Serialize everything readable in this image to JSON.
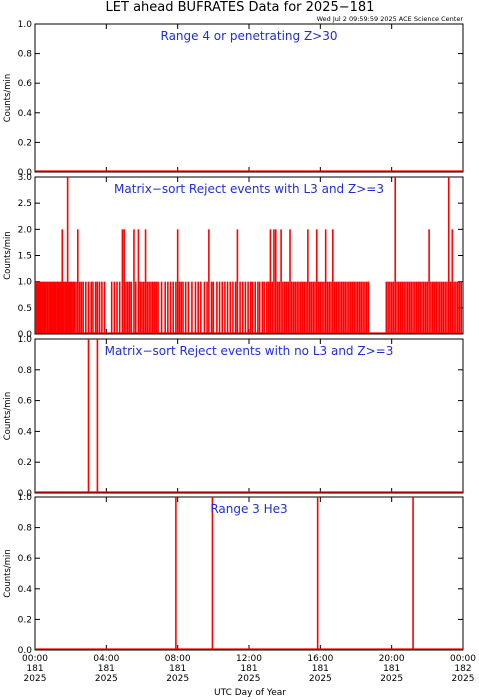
{
  "header": {
    "title": "LET ahead BUFRATES Data for 2025−181",
    "timestamp": "Wed Jul  2 09:59:59 2025 ACE Science Center"
  },
  "colors": {
    "data": "#ff0000",
    "label": "#1f2fd6",
    "axis": "#000000"
  },
  "chart_data": [
    {
      "type": "line",
      "title": "Range 4 or  penetrating Z>30",
      "ylabel": "Counts/min",
      "xlabel": "UTC Day of Year",
      "ylim": [
        0,
        1.0
      ],
      "yticks": [
        "0.0",
        "0.2",
        "0.4",
        "0.6",
        "0.8",
        "1.0"
      ],
      "ytick_values": [
        0,
        0.2,
        0.4,
        0.6,
        0.8,
        1.0
      ],
      "xlim_hours": [
        0,
        24
      ],
      "series": [
        {
          "values": []
        }
      ],
      "grid": false
    },
    {
      "type": "line",
      "title": "Matrix−sort Reject events with L3 and Z>=3",
      "ylabel": "Counts/min",
      "xlabel": "UTC Day of Year",
      "ylim": [
        0,
        3.0
      ],
      "yticks": [
        "0.0",
        "0.5",
        "1.0",
        "1.5",
        "2.0",
        "2.5",
        "3.0"
      ],
      "ytick_values": [
        0,
        0.5,
        1.0,
        1.5,
        2.0,
        2.5,
        3.0
      ],
      "xlim_hours": [
        0,
        24
      ],
      "series": [
        {
          "values": [
            [
              0.05,
              1
            ],
            [
              0.12,
              1
            ],
            [
              0.18,
              1
            ],
            [
              0.25,
              1
            ],
            [
              0.32,
              1
            ],
            [
              0.4,
              1
            ],
            [
              0.47,
              1
            ],
            [
              0.55,
              1
            ],
            [
              0.62,
              1
            ],
            [
              0.7,
              1
            ],
            [
              0.78,
              1
            ],
            [
              0.86,
              1
            ],
            [
              0.93,
              1
            ],
            [
              1.0,
              1
            ],
            [
              1.08,
              1
            ],
            [
              1.15,
              1
            ],
            [
              1.23,
              1
            ],
            [
              1.3,
              1
            ],
            [
              1.38,
              1
            ],
            [
              1.45,
              1
            ],
            [
              1.53,
              2
            ],
            [
              1.6,
              1
            ],
            [
              1.68,
              1
            ],
            [
              1.75,
              1
            ],
            [
              1.83,
              3
            ],
            [
              1.9,
              1
            ],
            [
              1.98,
              1
            ],
            [
              2.05,
              1
            ],
            [
              2.13,
              1
            ],
            [
              2.2,
              1
            ],
            [
              2.3,
              1
            ],
            [
              2.4,
              2
            ],
            [
              2.5,
              1
            ],
            [
              2.6,
              1
            ],
            [
              2.7,
              1
            ],
            [
              2.85,
              1
            ],
            [
              3.0,
              1
            ],
            [
              3.15,
              1
            ],
            [
              3.25,
              1
            ],
            [
              3.4,
              1
            ],
            [
              3.5,
              1
            ],
            [
              3.62,
              1
            ],
            [
              3.75,
              1
            ],
            [
              3.9,
              1
            ],
            [
              4.3,
              1
            ],
            [
              4.45,
              1
            ],
            [
              4.6,
              1
            ],
            [
              4.75,
              1
            ],
            [
              4.9,
              2
            ],
            [
              5.0,
              2
            ],
            [
              5.1,
              1
            ],
            [
              5.2,
              1
            ],
            [
              5.3,
              1
            ],
            [
              5.4,
              1
            ],
            [
              5.55,
              2
            ],
            [
              5.65,
              1
            ],
            [
              5.8,
              2
            ],
            [
              5.9,
              1
            ],
            [
              6.0,
              1
            ],
            [
              6.1,
              1
            ],
            [
              6.2,
              2
            ],
            [
              6.3,
              1
            ],
            [
              6.4,
              1
            ],
            [
              6.5,
              1
            ],
            [
              6.6,
              1
            ],
            [
              6.7,
              1
            ],
            [
              6.8,
              1
            ],
            [
              6.9,
              1
            ],
            [
              7.1,
              1
            ],
            [
              7.3,
              1
            ],
            [
              7.45,
              1
            ],
            [
              7.6,
              1
            ],
            [
              7.75,
              1
            ],
            [
              7.9,
              1
            ],
            [
              8.0,
              2
            ],
            [
              8.1,
              1
            ],
            [
              8.2,
              1
            ],
            [
              8.3,
              1
            ],
            [
              8.45,
              1
            ],
            [
              8.6,
              1
            ],
            [
              8.8,
              1
            ],
            [
              9.0,
              1
            ],
            [
              9.15,
              1
            ],
            [
              9.3,
              1
            ],
            [
              9.5,
              1
            ],
            [
              9.65,
              1
            ],
            [
              9.75,
              2
            ],
            [
              9.9,
              1
            ],
            [
              10.0,
              1
            ],
            [
              10.2,
              1
            ],
            [
              10.35,
              1
            ],
            [
              10.5,
              1
            ],
            [
              10.65,
              1
            ],
            [
              10.8,
              1
            ],
            [
              10.95,
              1
            ],
            [
              11.1,
              1
            ],
            [
              11.25,
              1
            ],
            [
              11.35,
              2
            ],
            [
              11.5,
              1
            ],
            [
              11.65,
              1
            ],
            [
              11.8,
              1
            ],
            [
              11.95,
              1
            ],
            [
              12.1,
              1
            ],
            [
              12.2,
              1
            ],
            [
              12.35,
              1
            ],
            [
              12.5,
              1
            ],
            [
              12.6,
              1
            ],
            [
              12.75,
              1
            ],
            [
              12.85,
              1
            ],
            [
              13.0,
              1
            ],
            [
              13.1,
              1
            ],
            [
              13.2,
              2
            ],
            [
              13.3,
              1
            ],
            [
              13.4,
              2
            ],
            [
              13.5,
              2
            ],
            [
              13.6,
              1
            ],
            [
              13.7,
              1
            ],
            [
              13.8,
              2
            ],
            [
              13.9,
              1
            ],
            [
              14.0,
              1
            ],
            [
              14.1,
              1
            ],
            [
              14.2,
              1
            ],
            [
              14.3,
              2
            ],
            [
              14.4,
              1
            ],
            [
              14.5,
              1
            ],
            [
              14.6,
              1
            ],
            [
              14.7,
              1
            ],
            [
              14.8,
              1
            ],
            [
              14.9,
              1
            ],
            [
              15.0,
              1
            ],
            [
              15.1,
              1
            ],
            [
              15.2,
              1
            ],
            [
              15.3,
              2
            ],
            [
              15.4,
              1
            ],
            [
              15.5,
              1
            ],
            [
              15.6,
              1
            ],
            [
              15.7,
              1
            ],
            [
              15.8,
              2
            ],
            [
              15.9,
              1
            ],
            [
              16.0,
              1
            ],
            [
              16.1,
              1
            ],
            [
              16.2,
              1
            ],
            [
              16.3,
              2
            ],
            [
              16.4,
              1
            ],
            [
              16.5,
              1
            ],
            [
              16.6,
              1
            ],
            [
              16.7,
              2
            ],
            [
              16.8,
              1
            ],
            [
              16.9,
              1
            ],
            [
              17.0,
              1
            ],
            [
              17.1,
              1
            ],
            [
              17.2,
              1
            ],
            [
              17.3,
              1
            ],
            [
              17.4,
              1
            ],
            [
              17.5,
              1
            ],
            [
              17.6,
              1
            ],
            [
              17.7,
              1
            ],
            [
              17.8,
              1
            ],
            [
              17.9,
              1
            ],
            [
              18.0,
              1
            ],
            [
              18.1,
              1
            ],
            [
              18.2,
              1
            ],
            [
              18.3,
              1
            ],
            [
              18.4,
              1
            ],
            [
              18.5,
              1
            ],
            [
              18.6,
              1
            ],
            [
              18.7,
              1
            ],
            [
              19.7,
              1
            ],
            [
              19.8,
              1
            ],
            [
              19.9,
              1
            ],
            [
              20.0,
              1
            ],
            [
              20.1,
              1
            ],
            [
              20.2,
              3
            ],
            [
              20.3,
              1
            ],
            [
              20.4,
              1
            ],
            [
              20.5,
              1
            ],
            [
              20.6,
              1
            ],
            [
              20.7,
              1
            ],
            [
              20.8,
              1
            ],
            [
              20.9,
              1
            ],
            [
              21.0,
              1
            ],
            [
              21.1,
              1
            ],
            [
              21.2,
              1
            ],
            [
              21.3,
              1
            ],
            [
              21.4,
              1
            ],
            [
              21.5,
              1
            ],
            [
              21.6,
              1
            ],
            [
              21.7,
              1
            ],
            [
              21.8,
              1
            ],
            [
              21.9,
              1
            ],
            [
              22.0,
              1
            ],
            [
              22.1,
              2
            ],
            [
              22.2,
              1
            ],
            [
              22.3,
              1
            ],
            [
              22.4,
              1
            ],
            [
              22.5,
              1
            ],
            [
              22.6,
              1
            ],
            [
              22.7,
              1
            ],
            [
              22.8,
              1
            ],
            [
              22.9,
              1
            ],
            [
              23.0,
              1
            ],
            [
              23.1,
              1
            ],
            [
              23.2,
              3
            ],
            [
              23.3,
              1
            ],
            [
              23.4,
              2
            ],
            [
              23.5,
              1
            ],
            [
              23.6,
              1
            ],
            [
              23.7,
              1
            ],
            [
              23.8,
              1
            ],
            [
              23.9,
              1
            ]
          ]
        }
      ],
      "grid": false
    },
    {
      "type": "line",
      "title": "Matrix−sort Reject events with no L3 and Z>=3",
      "ylabel": "Counts/min",
      "xlabel": "UTC Day of Year",
      "ylim": [
        0,
        1.0
      ],
      "yticks": [
        "0.0",
        "0.2",
        "0.4",
        "0.6",
        "0.8",
        "1.0"
      ],
      "ytick_values": [
        0,
        0.2,
        0.4,
        0.6,
        0.8,
        1.0
      ],
      "xlim_hours": [
        0,
        24
      ],
      "series": [
        {
          "values": [
            [
              3.0,
              1
            ],
            [
              3.5,
              1
            ]
          ]
        }
      ],
      "grid": false
    },
    {
      "type": "line",
      "title": "Range 3 He3",
      "ylabel": "Counts/min",
      "xlabel": "UTC Day of Year",
      "ylim": [
        0,
        1.0
      ],
      "yticks": [
        "0.0",
        "0.2",
        "0.4",
        "0.6",
        "0.8",
        "1.0"
      ],
      "ytick_values": [
        0,
        0.2,
        0.4,
        0.6,
        0.8,
        1.0
      ],
      "xlim_hours": [
        0,
        24
      ],
      "series": [
        {
          "values": [
            [
              7.9,
              1
            ],
            [
              9.95,
              1
            ],
            [
              15.85,
              1
            ],
            [
              21.2,
              1
            ]
          ]
        }
      ],
      "grid": false
    }
  ],
  "x_axis": {
    "label": "UTC Day of Year",
    "ticks": [
      {
        "hour": 0,
        "time": "00:00",
        "doy": "181",
        "year": "2025"
      },
      {
        "hour": 4,
        "time": "04:00",
        "doy": "181",
        "year": "2025"
      },
      {
        "hour": 8,
        "time": "08:00",
        "doy": "181",
        "year": "2025"
      },
      {
        "hour": 12,
        "time": "12:00",
        "doy": "181",
        "year": "2025"
      },
      {
        "hour": 16,
        "time": "16:00",
        "doy": "181",
        "year": "2025"
      },
      {
        "hour": 20,
        "time": "20:00",
        "doy": "181",
        "year": "2025"
      },
      {
        "hour": 24,
        "time": "00:00",
        "doy": "182",
        "year": "2025"
      }
    ]
  }
}
